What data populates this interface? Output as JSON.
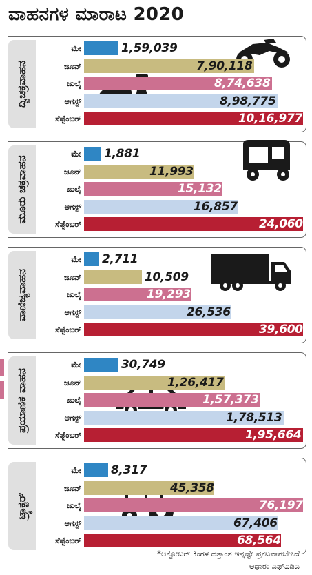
{
  "title": "ವಾಹನಗಳ ಮಾರಾಟ 2020",
  "chart_data": {
    "type": "bar",
    "orientation": "horizontal",
    "months": [
      "ಮೇ",
      "ಜೂನ್",
      "ಜುಲೈ",
      "ಆಗಸ್ಟ್",
      "ಸೆಪ್ಟೆಂಬರ್"
    ],
    "month_colors": [
      "#2f86c4",
      "#c8bb80",
      "#cc7090",
      "#c3d5eb",
      "#b71f33"
    ],
    "panels": [
      {
        "category": "ದ್ವಿಚಕ್ರವಾಹನ",
        "icon": "motorcycle-and-scooter-icon",
        "max": 1016977,
        "values": [
          159039,
          790118,
          874638,
          898775,
          1016977
        ],
        "labels": [
          "1,59,039",
          "7,90,118",
          "8,74,638",
          "8,98,775",
          "10,16,977"
        ]
      },
      {
        "category": "ಮೂರು ಚಕ್ರವಾಹನ",
        "icon": "auto-rickshaw-icon",
        "max": 24060,
        "values": [
          1881,
          11993,
          15132,
          16857,
          24060
        ],
        "labels": [
          "1,881",
          "11,993",
          "15,132",
          "16,857",
          "24,060"
        ]
      },
      {
        "category": "ವಾಣಿಜ್ಯವಾಹನ",
        "icon": "truck-icon",
        "max": 39600,
        "values": [
          2711,
          10509,
          19293,
          26536,
          39600
        ],
        "labels": [
          "2,711",
          "10,509",
          "19,293",
          "26,536",
          "39,600"
        ]
      },
      {
        "category": "ಪ್ರಯಾಣಿಕ ವಾಹನ",
        "icon": "car-icon",
        "max": 195664,
        "values": [
          30749,
          126417,
          157373,
          178513,
          195664
        ],
        "labels": [
          "30,749",
          "1,26,417",
          "1,57,373",
          "1,78,513",
          "1,95,664"
        ]
      },
      {
        "category": "ಟ್ರ್ಯಾಕ್ಟರ್",
        "icon": "tractor-icon",
        "max": 76197,
        "values": [
          8317,
          45358,
          76197,
          67406,
          68564
        ],
        "labels": [
          "8,317",
          "45,358",
          "76,197",
          "67,406",
          "68,564"
        ]
      }
    ]
  },
  "footnote": {
    "line1": "*ಅಕ್ಟೋಬರ್ 3ಂಗಳ ದತ್ತಾಂಶ ಇನ್ನಷ್ಟೇ ಪ್ರಕಟವಾಗಬೇಕಿದೆ",
    "line2": "ಆಧಾರ: ಎಫ್‌ಎಡಿಎ"
  }
}
